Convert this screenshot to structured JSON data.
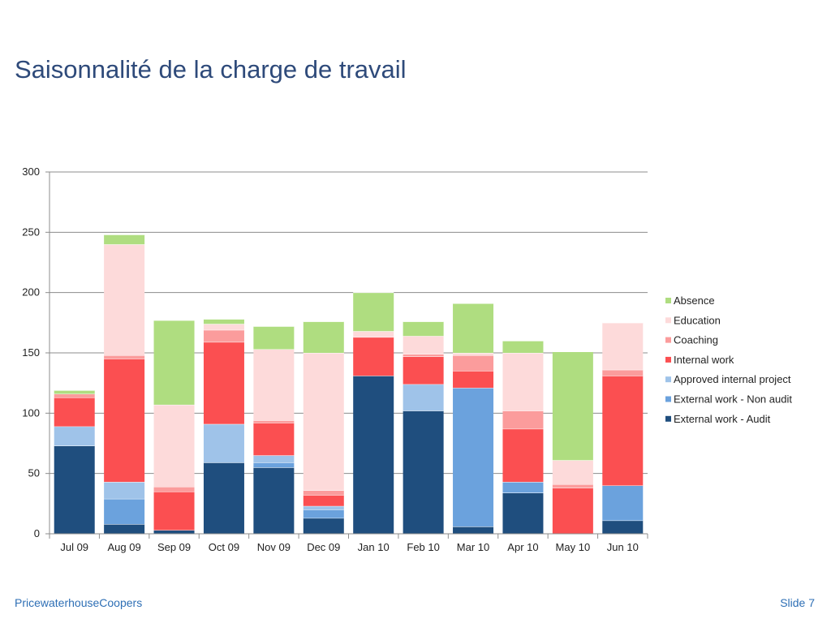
{
  "slide": {
    "title": "Saisonnalité de la charge de travail",
    "footer_left": "PricewaterhouseCoopers",
    "footer_right": "Slide 7"
  },
  "chart_data": {
    "type": "bar",
    "stacked": true,
    "title": "",
    "xlabel": "",
    "ylabel": "",
    "ylim": [
      0,
      300
    ],
    "yticks": [
      0,
      50,
      100,
      150,
      200,
      250,
      300
    ],
    "grid": true,
    "legend_position": "right",
    "categories": [
      "Jul 09",
      "Aug 09",
      "Sep 09",
      "Oct 09",
      "Nov 09",
      "Dec 09",
      "Jan 10",
      "Feb 10",
      "Mar 10",
      "Apr 10",
      "May 10",
      "Jun 10"
    ],
    "series": [
      {
        "name": "External work - Audit",
        "color": "#1f4e7e",
        "values": [
          73,
          8,
          3,
          59,
          55,
          13,
          131,
          102,
          6,
          34,
          0,
          11
        ]
      },
      {
        "name": "External work - Non audit",
        "color": "#6ba2dd",
        "values": [
          0,
          21,
          0,
          0,
          4,
          7,
          0,
          0,
          115,
          9,
          0,
          29
        ]
      },
      {
        "name": "Approved internal project",
        "color": "#9fc3e9",
        "values": [
          16,
          14,
          0,
          32,
          6,
          3,
          0,
          22,
          0,
          0,
          0,
          0
        ]
      },
      {
        "name": "Internal work",
        "color": "#fb4f51",
        "values": [
          24,
          102,
          32,
          68,
          27,
          9,
          32,
          23,
          14,
          44,
          38,
          91
        ]
      },
      {
        "name": "Coaching",
        "color": "#fb9c9c",
        "values": [
          3,
          3,
          4,
          10,
          2,
          4,
          0,
          2,
          13,
          15,
          3,
          5
        ]
      },
      {
        "name": "Education",
        "color": "#fddada",
        "values": [
          0,
          92,
          68,
          5,
          59,
          114,
          5,
          15,
          2,
          48,
          20,
          39
        ]
      },
      {
        "name": "Absence",
        "color": "#afdd80",
        "values": [
          3,
          8,
          70,
          4,
          19,
          26,
          32,
          12,
          41,
          10,
          90,
          0
        ]
      }
    ]
  }
}
